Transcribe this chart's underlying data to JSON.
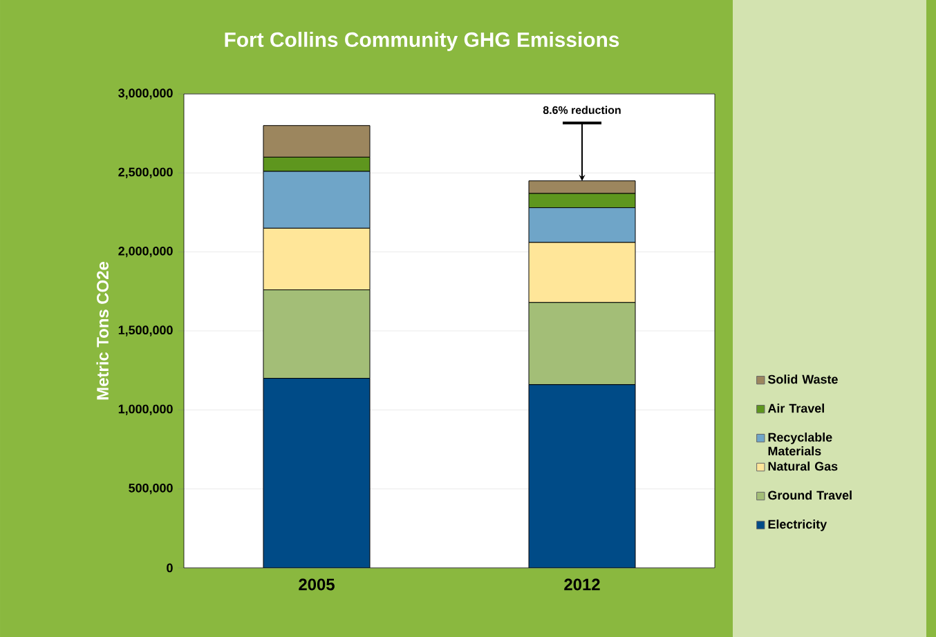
{
  "chart_data": {
    "type": "bar",
    "stacked": true,
    "title": "Fort Collins Community GHG Emissions",
    "ylabel": "Metric Tons CO2e",
    "categories": [
      "2005",
      "2012"
    ],
    "series": [
      {
        "name": "Electricity",
        "color": "#004b87",
        "values": [
          1200000,
          1160000
        ]
      },
      {
        "name": "Ground Travel",
        "color": "#a3be77",
        "values": [
          560000,
          520000
        ]
      },
      {
        "name": "Natural Gas",
        "color": "#ffe699",
        "values": [
          390000,
          380000
        ]
      },
      {
        "name": "Recyclable Materials",
        "color": "#6fa5c8",
        "values": [
          360000,
          220000
        ]
      },
      {
        "name": "Air Travel",
        "color": "#5e961e",
        "values": [
          90000,
          90000
        ]
      },
      {
        "name": "Solid Waste",
        "color": "#9c865e",
        "values": [
          200000,
          80000
        ]
      }
    ],
    "ylim": [
      0,
      3000000
    ],
    "yticks": [
      {
        "value": 0,
        "label": "0"
      },
      {
        "value": 500000,
        "label": "500,000"
      },
      {
        "value": 1000000,
        "label": "1,000,000"
      },
      {
        "value": 1500000,
        "label": "1,500,000"
      },
      {
        "value": 2000000,
        "label": "2,000,000"
      },
      {
        "value": 2500000,
        "label": "2,500,000"
      },
      {
        "value": 3000000,
        "label": "3,000,000"
      }
    ],
    "grid": "y",
    "legend": "right",
    "annotations": [
      {
        "text": "8.6% reduction",
        "x": "2012",
        "y": 2440000
      }
    ]
  }
}
